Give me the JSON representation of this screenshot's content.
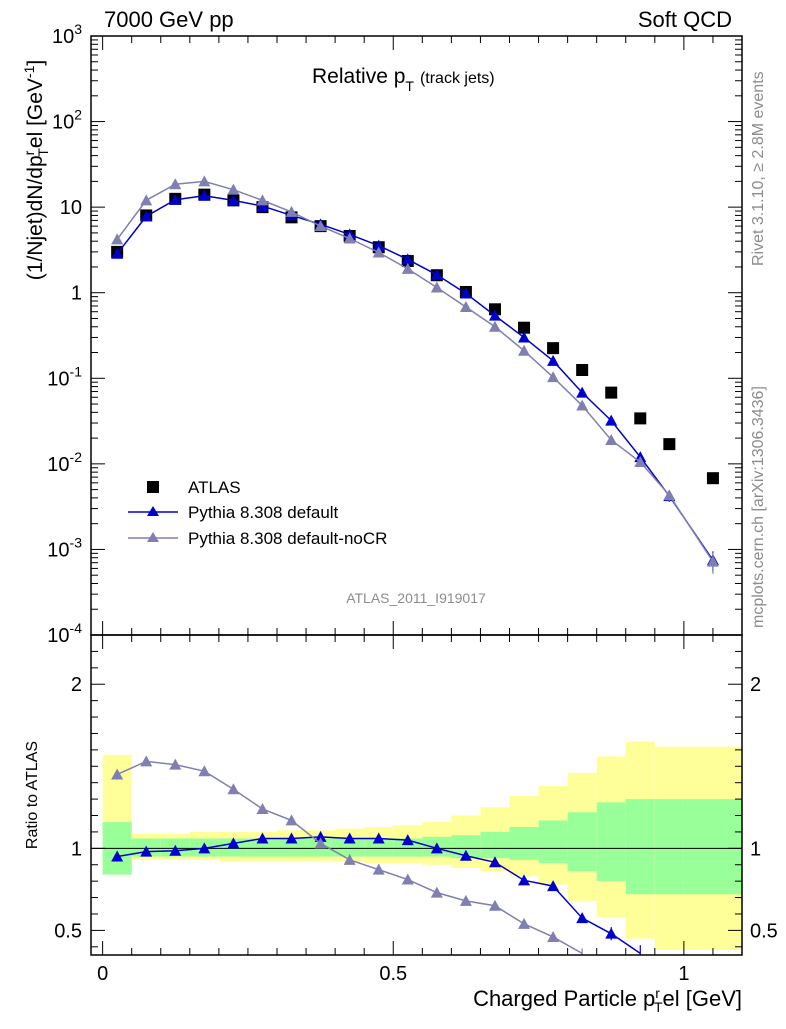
{
  "header": {
    "left": "7000 GeV pp",
    "right": "Soft QCD"
  },
  "side_labels": {
    "rivet": "Rivet 3.1.10, ≥ 2.8M events",
    "mcplots": "mcplots.cern.ch [arXiv:1306.3436]"
  },
  "chart_data": [
    {
      "type": "scatter",
      "title": "Relative p_T (track jets)",
      "title_main": "Relative p",
      "title_sub": "T",
      "title_note": "(track jets)",
      "ylabel": "(1/Njet)dN/dp^r_T el [GeV^-1]",
      "ylabel_parts": {
        "a": "(1/Njet)dN/dp",
        "sup1": "r",
        "sub1": "T",
        "b": "el [GeV",
        "sup2": "-1",
        "c": "]"
      },
      "yscale": "log",
      "ylim": [
        0.0001,
        1000
      ],
      "xlim": [
        -0.02,
        1.1
      ],
      "y_tick_labels": [
        "10^-4",
        "10^-3",
        "10^-2",
        "10^-1",
        "1",
        "10",
        "10^2",
        "10^3"
      ],
      "y_ticks": [
        {
          "base": "10",
          "exp": "-4"
        },
        {
          "base": "10",
          "exp": "-3"
        },
        {
          "base": "10",
          "exp": "-2"
        },
        {
          "base": "10",
          "exp": "-1"
        },
        {
          "base": "1",
          "exp": ""
        },
        {
          "base": "10",
          "exp": ""
        },
        {
          "base": "10",
          "exp": "2"
        },
        {
          "base": "10",
          "exp": "3"
        }
      ],
      "analysis_label": "ATLAS_2011_I919017",
      "legend_position": "bottom-left",
      "x": [
        0.025,
        0.075,
        0.125,
        0.175,
        0.225,
        0.275,
        0.325,
        0.375,
        0.425,
        0.475,
        0.525,
        0.575,
        0.625,
        0.675,
        0.725,
        0.775,
        0.825,
        0.875,
        0.925,
        0.975,
        1.05
      ],
      "series": [
        {
          "name": "ATLAS",
          "marker": "square",
          "color": "#000000",
          "values": [
            3.0,
            8.0,
            12.5,
            14.0,
            12.0,
            10.0,
            7.6,
            6.0,
            4.6,
            3.4,
            2.35,
            1.6,
            1.02,
            0.64,
            0.39,
            0.225,
            0.125,
            0.068,
            0.034,
            0.017,
            0.0068
          ]
        },
        {
          "name": "Pythia 8.308 default",
          "marker": "triangle",
          "color": "#0000cc",
          "values": [
            2.85,
            7.8,
            12.2,
            13.6,
            12.0,
            10.3,
            8.0,
            6.3,
            4.8,
            3.55,
            2.45,
            1.62,
            0.98,
            0.54,
            0.3,
            0.16,
            0.068,
            0.032,
            0.012,
            0.0042,
            0.00075
          ],
          "errors": [
            0,
            0,
            0,
            0,
            0,
            0,
            0,
            0,
            0,
            0,
            0,
            0,
            0,
            0,
            0,
            0,
            0,
            0,
            0,
            0.0006,
            0.0002
          ]
        },
        {
          "name": "Pythia 8.308 default-noCR",
          "marker": "triangle",
          "color": "#7f7fb2",
          "values": [
            4.2,
            12.0,
            18.5,
            20.0,
            16.0,
            12.0,
            8.8,
            6.0,
            4.3,
            2.95,
            1.9,
            1.15,
            0.68,
            0.4,
            0.21,
            0.103,
            0.048,
            0.019,
            0.0105,
            0.0043,
            0.00072
          ],
          "errors": [
            0,
            0,
            0,
            0,
            0,
            0,
            0,
            0,
            0,
            0,
            0,
            0,
            0,
            0,
            0,
            0,
            0,
            0,
            0,
            0.0006,
            0.0002
          ]
        }
      ]
    },
    {
      "type": "line",
      "ylabel": "Ratio to ATLAS",
      "xlabel": "Charged Particle p^r_T el [GeV]",
      "xlabel_parts": {
        "a": "Charged Particle p",
        "sup": "r",
        "sub": "T",
        "b": "el [GeV]"
      },
      "ylim": [
        0.35,
        2.3
      ],
      "xlim": [
        -0.02,
        1.1
      ],
      "y_tick_labels": [
        "0.5",
        "1",
        "2"
      ],
      "x_tick_labels": [
        "0",
        "0.5",
        "1"
      ],
      "reference_line": 1,
      "bands": {
        "edges": [
          0.0,
          0.05,
          0.1,
          0.15,
          0.2,
          0.25,
          0.3,
          0.35,
          0.4,
          0.45,
          0.5,
          0.55,
          0.6,
          0.65,
          0.7,
          0.75,
          0.8,
          0.85,
          0.9,
          0.95,
          1.0,
          1.1
        ],
        "green_lo": [
          0.84,
          0.95,
          0.95,
          0.95,
          0.95,
          0.95,
          0.95,
          0.95,
          0.95,
          0.95,
          0.95,
          0.95,
          0.94,
          0.94,
          0.93,
          0.91,
          0.86,
          0.8,
          0.72,
          0.72,
          0.72
        ],
        "green_hi": [
          1.16,
          1.06,
          1.06,
          1.06,
          1.06,
          1.06,
          1.06,
          1.06,
          1.06,
          1.06,
          1.06,
          1.07,
          1.08,
          1.1,
          1.13,
          1.17,
          1.22,
          1.28,
          1.3,
          1.3,
          1.3
        ],
        "yellow_lo": [
          0.86,
          0.93,
          0.93,
          0.93,
          0.92,
          0.92,
          0.92,
          0.92,
          0.92,
          0.91,
          0.91,
          0.9,
          0.88,
          0.86,
          0.83,
          0.78,
          0.68,
          0.58,
          0.45,
          0.38,
          0.38
        ],
        "yellow_hi": [
          1.57,
          1.09,
          1.09,
          1.1,
          1.1,
          1.1,
          1.11,
          1.11,
          1.12,
          1.13,
          1.14,
          1.16,
          1.2,
          1.25,
          1.32,
          1.38,
          1.46,
          1.56,
          1.65,
          1.62,
          1.62
        ]
      },
      "series": [
        {
          "name": "Pythia 8.308 default",
          "color": "#0000cc",
          "values": [
            0.95,
            0.98,
            0.985,
            1.0,
            1.03,
            1.06,
            1.06,
            1.07,
            1.06,
            1.06,
            1.05,
            1.0,
            0.955,
            0.915,
            0.805,
            0.77,
            0.575,
            0.48,
            0.36
          ],
          "errors": [
            0,
            0,
            0,
            0,
            0,
            0,
            0,
            0,
            0,
            0,
            0,
            0,
            0,
            0,
            0,
            0.02,
            0.03,
            0.04,
            0.05
          ]
        },
        {
          "name": "Pythia 8.308 default-noCR",
          "color": "#7f7fb2",
          "values": [
            1.45,
            1.53,
            1.51,
            1.47,
            1.36,
            1.24,
            1.17,
            1.03,
            0.93,
            0.87,
            0.81,
            0.73,
            0.68,
            0.65,
            0.54,
            0.46,
            0.36
          ],
          "errors": [
            0,
            0,
            0,
            0,
            0,
            0,
            0,
            0,
            0,
            0,
            0,
            0,
            0,
            0,
            0.01,
            0.02,
            0.03
          ]
        }
      ]
    }
  ]
}
